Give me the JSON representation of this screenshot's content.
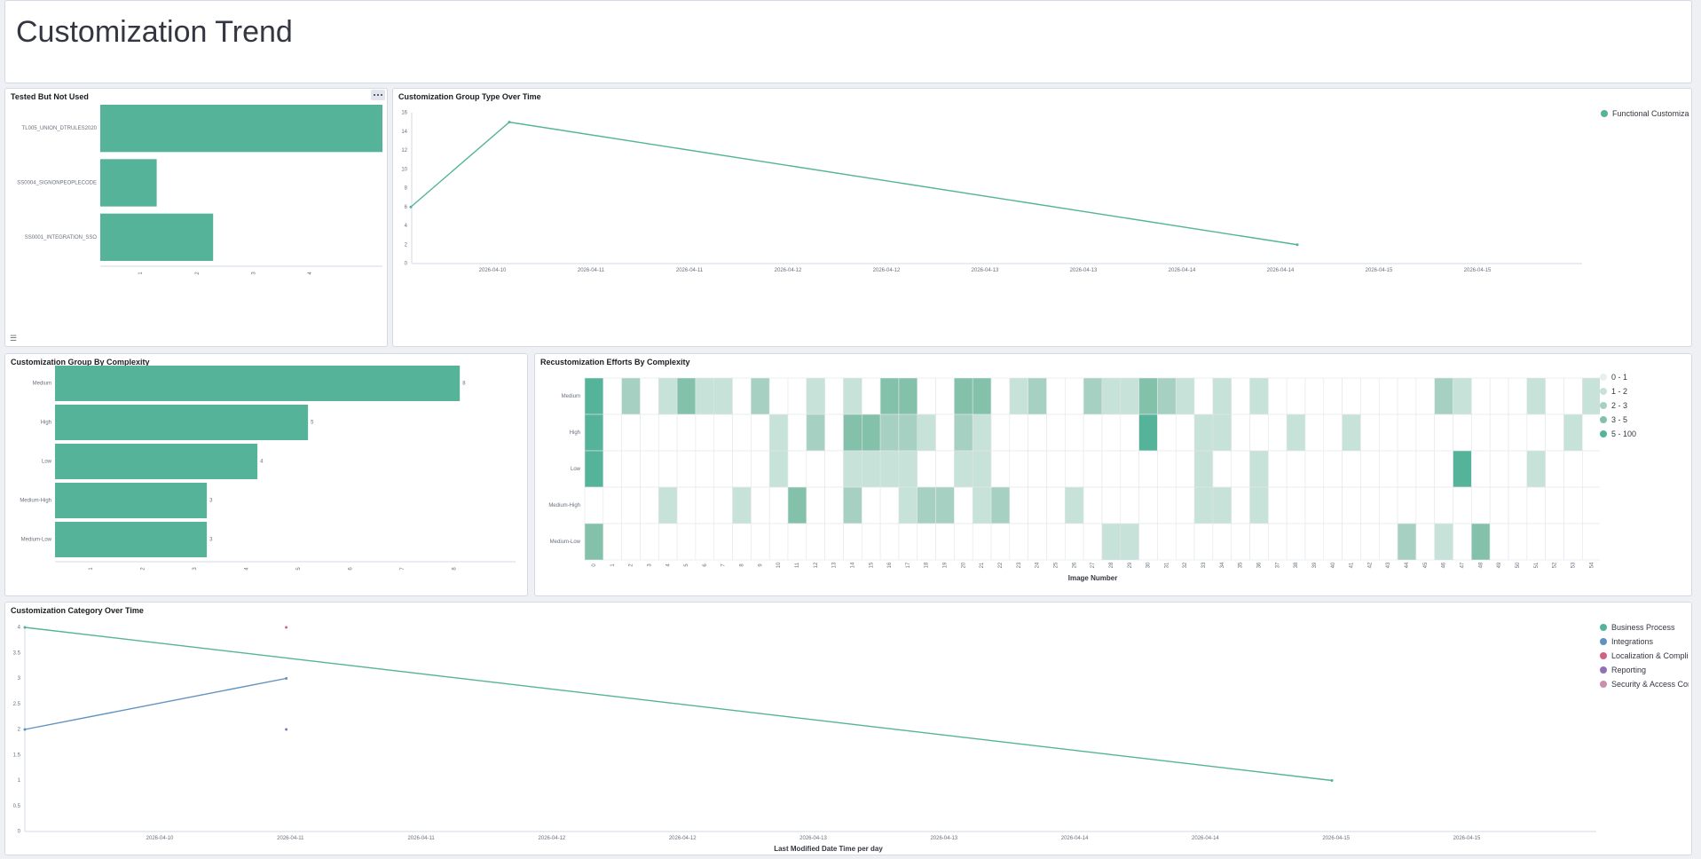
{
  "page": {
    "title": "Customization Trend"
  },
  "colors": {
    "primary": "#54b399",
    "secondary": "#6092c0",
    "tertiary": "#d36086",
    "quaternary": "#9170b8",
    "quinary": "#ca8eae"
  },
  "panels": {
    "tested": {
      "title": "Tested But Not Used"
    },
    "group_type": {
      "title": "Customization Group Type Over Time"
    },
    "complexity": {
      "title": "Customization Group By Complexity"
    },
    "efforts": {
      "title": "Recustomization Efforts By Complexity"
    },
    "category": {
      "title": "Customization Category Over Time"
    }
  },
  "chart_data": [
    {
      "id": "tested",
      "type": "bar",
      "orientation": "horizontal",
      "title": "Tested But Not Used",
      "categories": [
        "TL005_UNION_DTRULES2020",
        "SS0004_SIGNONPEOPLECODE",
        "SS0001_INTEGRATION_SSO"
      ],
      "values": [
        5,
        1,
        2
      ],
      "xlim": [
        0,
        5
      ],
      "xticks": [
        "1",
        "2",
        "3",
        "4"
      ]
    },
    {
      "id": "group_type",
      "type": "line",
      "title": "Customization Group Type Over Time",
      "series": [
        {
          "name": "Functional Customiza",
          "points": [
            {
              "x": "2026-04-10T12:00",
              "y": 6
            },
            {
              "x": "2026-04-11T00:00",
              "y": 15
            },
            {
              "x": "2026-04-15T00:00",
              "y": 2
            }
          ]
        }
      ],
      "ylim": [
        0,
        16
      ],
      "yticks": [
        "0",
        "2",
        "4",
        "6",
        "8",
        "10",
        "12",
        "14",
        "16"
      ],
      "xticks": [
        "2026-04-10",
        "2026-04-11",
        "2026-04-11",
        "2026-04-12",
        "2026-04-12",
        "2026-04-13",
        "2026-04-13",
        "2026-04-14",
        "2026-04-14",
        "2026-04-15",
        "2026-04-15"
      ],
      "legend": "top-right"
    },
    {
      "id": "complexity",
      "type": "bar",
      "orientation": "horizontal",
      "title": "Customization Group By Complexity",
      "categories": [
        "Medium",
        "High",
        "Low",
        "Medium-High",
        "Medium-Low"
      ],
      "values": [
        8,
        5,
        4,
        3,
        3
      ],
      "value_labels": [
        "8",
        "5",
        "4",
        "3",
        "3"
      ],
      "xlim": [
        0,
        9
      ],
      "xticks": [
        "1",
        "2",
        "3",
        "4",
        "5",
        "6",
        "7",
        "8"
      ]
    },
    {
      "id": "efforts",
      "type": "heatmap",
      "title": "Recustomization Efforts By Complexity",
      "xlabel": "Image Number",
      "rows": [
        "Medium",
        "High",
        "Low",
        "Medium-High",
        "Medium-Low"
      ],
      "columns": [
        "0",
        "1",
        "2",
        "3",
        "4",
        "5",
        "6",
        "7",
        "8",
        "9",
        "10",
        "11",
        "12",
        "13",
        "14",
        "15",
        "16",
        "17",
        "18",
        "19",
        "20",
        "21",
        "22",
        "23",
        "24",
        "25",
        "26",
        "27",
        "28",
        "29",
        "30",
        "31",
        "32",
        "33",
        "34",
        "35",
        "36",
        "37",
        "38",
        "39",
        "40",
        "41",
        "42",
        "43",
        "44",
        "45",
        "46",
        "47",
        "48",
        "49",
        "50",
        "51",
        "52",
        "53",
        "54"
      ],
      "legend_ranges": [
        "0 - 1",
        "1 - 2",
        "2 - 3",
        "3 - 5",
        "5 - 100"
      ],
      "legend_colors": [
        "#e6f1ee",
        "#c7e2d9",
        "#a6d1c2",
        "#84c1ab",
        "#54b399"
      ],
      "cells": [
        [
          4,
          0,
          2,
          0,
          1,
          3,
          1,
          1,
          0,
          2,
          0,
          0,
          1,
          0,
          1,
          0,
          3,
          3,
          0,
          0,
          3,
          3,
          0,
          1,
          2,
          0,
          0,
          2,
          1,
          1,
          3,
          2,
          1,
          0,
          1,
          0,
          1,
          0,
          0,
          0,
          0,
          0,
          0,
          0,
          0,
          0,
          2,
          1,
          0,
          0,
          0,
          1,
          0,
          0,
          1
        ],
        [
          4,
          0,
          0,
          0,
          0,
          0,
          0,
          0,
          0,
          0,
          1,
          0,
          2,
          0,
          3,
          3,
          2,
          2,
          1,
          0,
          2,
          1,
          0,
          0,
          0,
          0,
          0,
          0,
          0,
          0,
          4,
          0,
          0,
          1,
          1,
          0,
          0,
          0,
          1,
          0,
          0,
          1,
          0,
          0,
          0,
          0,
          0,
          0,
          0,
          0,
          0,
          0,
          0,
          1,
          0
        ],
        [
          4,
          0,
          0,
          0,
          0,
          0,
          0,
          0,
          0,
          0,
          1,
          0,
          0,
          0,
          1,
          1,
          1,
          1,
          0,
          0,
          1,
          1,
          0,
          0,
          0,
          0,
          0,
          0,
          0,
          0,
          0,
          0,
          0,
          1,
          0,
          0,
          1,
          0,
          0,
          0,
          0,
          0,
          0,
          0,
          0,
          0,
          0,
          4,
          0,
          0,
          0,
          1,
          0,
          0,
          0
        ],
        [
          0,
          0,
          0,
          0,
          1,
          0,
          0,
          0,
          1,
          0,
          0,
          3,
          0,
          0,
          2,
          0,
          0,
          1,
          2,
          2,
          0,
          1,
          2,
          0,
          0,
          0,
          1,
          0,
          0,
          0,
          0,
          0,
          0,
          1,
          1,
          0,
          1,
          0,
          0,
          0,
          0,
          0,
          0,
          0,
          0,
          0,
          0,
          0,
          0,
          0,
          0,
          0,
          0,
          0,
          0
        ],
        [
          3,
          0,
          0,
          0,
          0,
          0,
          0,
          0,
          0,
          0,
          0,
          0,
          0,
          0,
          0,
          0,
          0,
          0,
          0,
          0,
          0,
          0,
          0,
          0,
          0,
          0,
          0,
          0,
          1,
          1,
          0,
          0,
          0,
          0,
          0,
          0,
          0,
          0,
          0,
          0,
          0,
          0,
          0,
          0,
          2,
          0,
          1,
          0,
          3,
          0,
          0,
          0,
          0,
          0,
          0
        ]
      ]
    },
    {
      "id": "category",
      "type": "line",
      "title": "Customization Category Over Time",
      "xlabel": "Last Modified Date Time per day",
      "series": [
        {
          "name": "Business Process",
          "points": [
            {
              "x": "2026-04-10T00:00",
              "y": 4
            },
            {
              "x": "2026-04-15T00:00",
              "y": 1
            }
          ]
        },
        {
          "name": "Integrations",
          "points": [
            {
              "x": "2026-04-10T00:00",
              "y": 2
            },
            {
              "x": "2026-04-11T00:00",
              "y": 3
            }
          ]
        },
        {
          "name": "Localization & Compli",
          "points": [
            {
              "x": "2026-04-11T00:00",
              "y": 4
            }
          ]
        },
        {
          "name": "Reporting",
          "points": [
            {
              "x": "2026-04-11T00:00",
              "y": 2
            }
          ]
        },
        {
          "name": "Security & Access Con",
          "points": []
        }
      ],
      "ylim": [
        0,
        4
      ],
      "yticks": [
        "0",
        "0.5",
        "1",
        "1.5",
        "2",
        "2.5",
        "3",
        "3.5",
        "4"
      ],
      "xticks": [
        "2026-04-10",
        "2026-04-11",
        "2026-04-11",
        "2026-04-12",
        "2026-04-12",
        "2026-04-13",
        "2026-04-13",
        "2026-04-14",
        "2026-04-14",
        "2026-04-15",
        "2026-04-15"
      ],
      "legend": "top-right"
    }
  ]
}
